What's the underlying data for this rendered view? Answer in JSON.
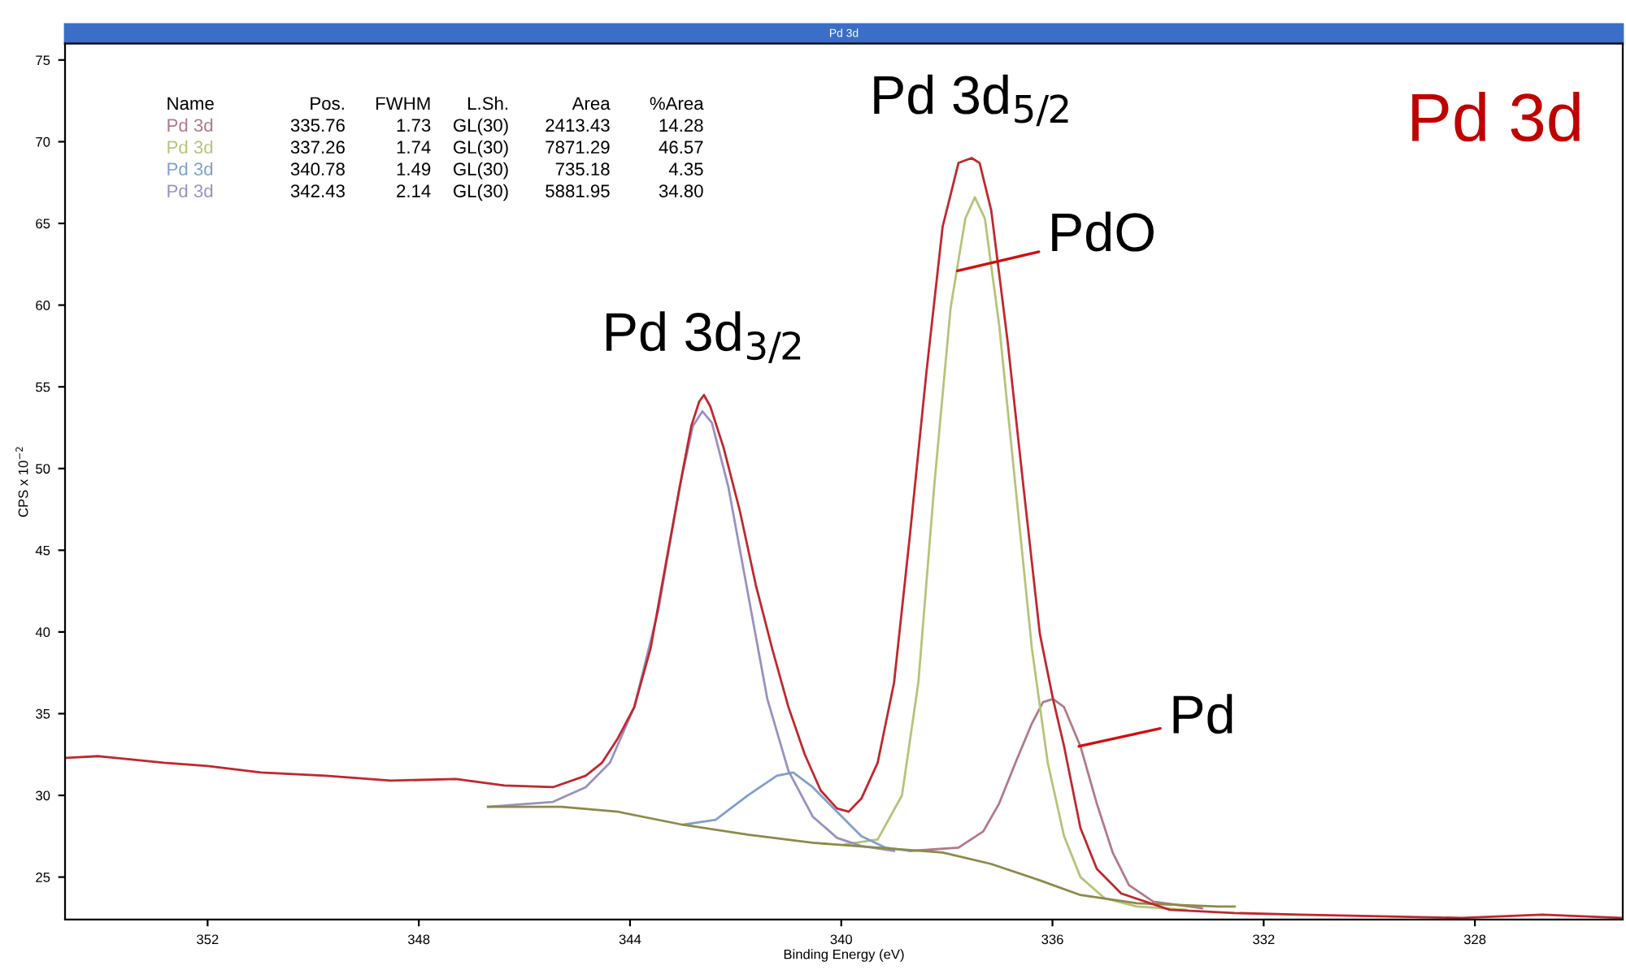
{
  "chart_data": {
    "type": "line",
    "title": "Pd 3d",
    "xlabel": "Binding Energy (eV)",
    "ylabel": "CPS x 10$^{−2}$",
    "xlim": [
      354.7,
      325.2
    ],
    "ylim": [
      22.4,
      76.0
    ],
    "xticks": [
      352,
      348,
      344,
      340,
      336,
      332,
      328
    ],
    "yticks": [
      25,
      30,
      35,
      40,
      45,
      50,
      55,
      60,
      65,
      70,
      75
    ],
    "grid": false,
    "legend": false,
    "marker": "none",
    "line_style": "solid",
    "series": [
      {
        "name": "Pd 3d",
        "color": "#b07a8a",
        "x": [
          338.7,
          337.78,
          337.31,
          337.01,
          336.7,
          336.39,
          336.18,
          335.99,
          335.78,
          335.47,
          335.16,
          334.86,
          334.55,
          334.09,
          333.17
        ],
        "values": [
          26.6,
          26.8,
          27.8,
          29.5,
          32.0,
          34.4,
          35.7,
          35.9,
          35.4,
          33.0,
          29.5,
          26.5,
          24.5,
          23.5,
          23.1
        ]
      },
      {
        "name": "Pd 3d",
        "color": "#b5c47a",
        "x": [
          339.93,
          339.31,
          338.85,
          338.54,
          338.24,
          337.93,
          337.65,
          337.47,
          337.28,
          337.01,
          336.7,
          336.39,
          336.09,
          335.78,
          335.47,
          335.01,
          334.4,
          333.47
        ],
        "values": [
          27.0,
          27.3,
          30.0,
          36.9,
          48.9,
          59.8,
          65.3,
          66.6,
          65.3,
          58.8,
          48.9,
          39.0,
          32.0,
          27.5,
          25.0,
          23.7,
          23.2,
          23.0
        ]
      },
      {
        "name": "Pd 3d",
        "color": "#7fa0cc",
        "x": [
          343.0,
          342.38,
          341.77,
          341.22,
          340.91,
          340.54,
          340.08,
          339.62,
          339.16,
          338.7
        ],
        "values": [
          28.2,
          28.5,
          30.0,
          31.2,
          31.4,
          30.5,
          29.0,
          27.5,
          26.8,
          26.6
        ]
      },
      {
        "name": "Pd 3d",
        "color": "#9a90c0",
        "x": [
          346.69,
          345.46,
          344.84,
          344.38,
          343.92,
          343.46,
          343.06,
          342.81,
          342.63,
          342.45,
          342.14,
          341.77,
          341.4,
          341.0,
          340.54,
          340.08,
          339.62,
          339.0
        ],
        "values": [
          29.3,
          29.6,
          30.5,
          32.0,
          35.4,
          41.4,
          48.9,
          52.6,
          53.5,
          52.8,
          48.9,
          42.4,
          35.9,
          31.5,
          28.7,
          27.4,
          26.9,
          26.6
        ]
      },
      {
        "color": "#8b8b4a",
        "x": [
          346.69,
          345.3,
          344.23,
          343.0,
          341.77,
          340.54,
          339.31,
          338.08,
          337.16,
          336.24,
          335.47,
          334.4,
          332.86,
          332.55
        ],
        "values": [
          29.3,
          29.3,
          29.0,
          28.2,
          27.6,
          27.1,
          26.8,
          26.5,
          25.8,
          24.8,
          23.9,
          23.4,
          23.2,
          23.2
        ]
      },
      {
        "color": "#c0272d",
        "x": [
          354.67,
          354.06,
          353.44,
          352.83,
          352.0,
          350.99,
          349.76,
          348.53,
          347.3,
          346.38,
          345.46,
          344.84,
          344.53,
          344.23,
          343.92,
          343.61,
          343.31,
          343.0,
          342.84,
          342.69,
          342.6,
          342.48,
          342.23,
          341.92,
          341.62,
          341.31,
          341.0,
          340.69,
          340.39,
          340.08,
          339.86,
          339.62,
          339.31,
          339.0,
          338.7,
          338.39,
          338.08,
          337.78,
          337.53,
          337.38,
          337.16,
          336.85,
          336.55,
          336.24,
          335.99,
          335.78,
          335.47,
          335.16,
          334.7,
          333.78,
          332.55,
          331.32,
          329.79,
          328.25,
          326.72,
          325.24
        ],
        "values": [
          32.3,
          32.4,
          32.2,
          32.0,
          31.8,
          31.4,
          31.2,
          30.9,
          31.0,
          30.6,
          30.5,
          31.2,
          32.0,
          33.5,
          35.4,
          39.0,
          44.4,
          49.9,
          52.6,
          54.1,
          54.5,
          53.8,
          51.3,
          47.4,
          42.9,
          39.0,
          35.4,
          32.5,
          30.3,
          29.2,
          29.0,
          29.8,
          32.0,
          36.9,
          45.9,
          55.8,
          64.8,
          68.7,
          69.0,
          68.7,
          65.8,
          57.8,
          48.9,
          39.9,
          35.9,
          33.0,
          28.0,
          25.5,
          24.0,
          23.0,
          22.8,
          22.7,
          22.6,
          22.5,
          22.7,
          22.5
        ]
      }
    ],
    "annotations": [
      "Name Pos. FWHM L.Sh. Area %Area",
      "335.76 1.73 GL(30) 2413.43 14.28",
      "337.26 1.74 GL(30) 7871.29 46.57",
      "340.78 1.49 GL(30) 735.18 4.35",
      "342.43 2.14 GL(30) 5881.95 34.80",
      "Pd 3d",
      {
        "text": "Pd 3d$_{3/2}$",
        "x": 342.6,
        "y": 54.5
      },
      {
        "text": "Pd 3d$_{5/2}$",
        "x": 337.53,
        "y": 69.0
      },
      {
        "text": "PdO",
        "x": 337.8,
        "y": 62.1
      },
      {
        "text": "Pd",
        "x": 335.5,
        "y": 33.0
      }
    ]
  }
}
